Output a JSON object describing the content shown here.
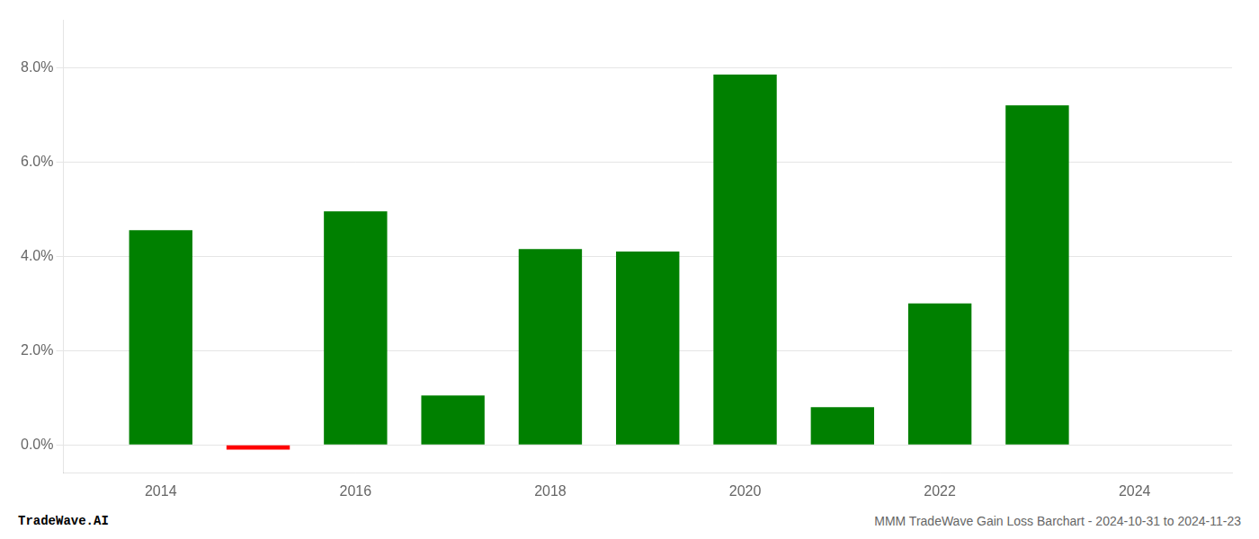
{
  "chart_data": {
    "type": "bar",
    "x": [
      2014,
      2015,
      2016,
      2017,
      2018,
      2019,
      2020,
      2021,
      2022,
      2023
    ],
    "values": [
      0.0455,
      -0.001,
      0.0495,
      0.0105,
      0.0415,
      0.041,
      0.0785,
      0.008,
      0.03,
      0.072
    ],
    "colors": [
      "#008000",
      "#ff0000",
      "#008000",
      "#008000",
      "#008000",
      "#008000",
      "#008000",
      "#008000",
      "#008000",
      "#008000"
    ],
    "xlim": [
      2013.0,
      2025.0
    ],
    "xticks": [
      2014,
      2016,
      2018,
      2020,
      2022,
      2024
    ],
    "ylim": [
      -0.006,
      0.09
    ],
    "yticks": [
      {
        "value": 0.0,
        "label": "0.0%"
      },
      {
        "value": 0.02,
        "label": "2.0%"
      },
      {
        "value": 0.04,
        "label": "4.0%"
      },
      {
        "value": 0.06,
        "label": "6.0%"
      },
      {
        "value": 0.08,
        "label": "8.0%"
      }
    ],
    "grid": "y",
    "annotations": [
      "TradeWave.AI",
      "MMM TradeWave Gain Loss Barchart - 2024-10-31 to 2024-11-23"
    ]
  }
}
